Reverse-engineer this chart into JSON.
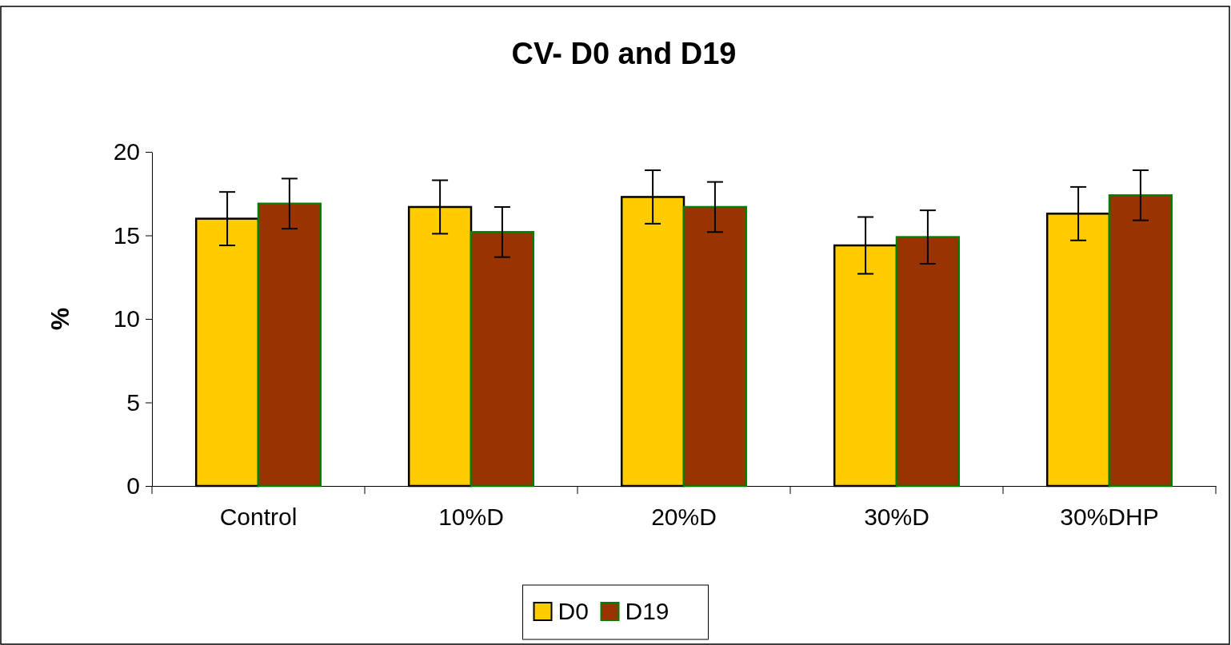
{
  "chart_data": {
    "type": "bar",
    "title": "CV- D0 and D19",
    "ylabel": "%",
    "categories": [
      "Control",
      "10%D",
      "20%D",
      "30%D",
      "30%DHP"
    ],
    "series": [
      {
        "name": "D0",
        "color": "#ffcc00",
        "values": [
          16.0,
          16.7,
          17.3,
          14.4,
          16.3
        ],
        "errors": [
          1.6,
          1.6,
          1.6,
          1.7,
          1.6
        ]
      },
      {
        "name": "D19",
        "color": "#993300",
        "values": [
          16.9,
          15.2,
          16.7,
          14.9,
          17.4
        ],
        "errors": [
          1.5,
          1.5,
          1.5,
          1.6,
          1.5
        ]
      }
    ],
    "ylim": [
      0,
      20
    ],
    "yticks": [
      0,
      5,
      10,
      15,
      20
    ],
    "grid": false,
    "legend": "bottom"
  }
}
